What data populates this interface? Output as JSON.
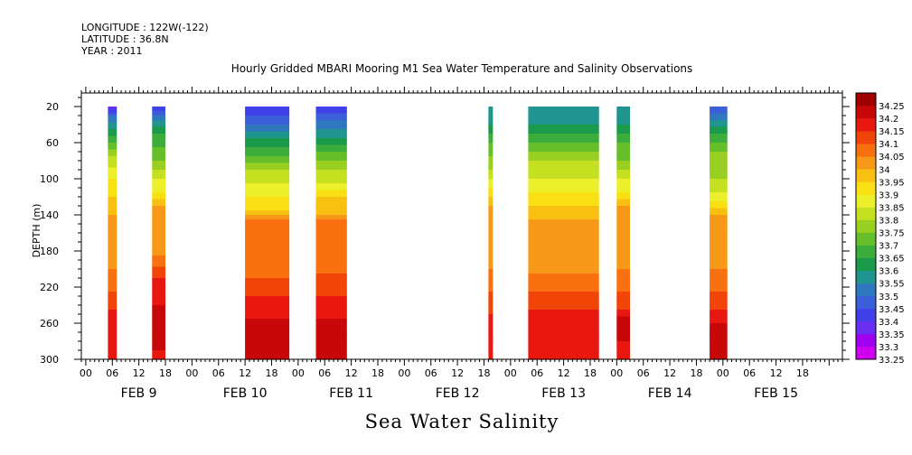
{
  "header": {
    "longitude": "LONGITUDE : 122W(-122)",
    "latitude": "LATITUDE : 36.8N",
    "year": "YEAR : 2011"
  },
  "title": "Hourly Gridded MBARI Mooring M1 Sea Water Temperature and Salinity Observations",
  "footer": "Sea Water Salinity",
  "chart_data": {
    "type": "heatmap",
    "title": "Hourly Gridded MBARI Mooring M1 Sea Water Temperature and Salinity Observations",
    "xlabel": "",
    "ylabel": "DEPTH (m)",
    "x_tick_labels": [
      "00",
      "06",
      "12",
      "18",
      "00",
      "06",
      "12",
      "18",
      "00",
      "06",
      "12",
      "18",
      "00",
      "06",
      "12",
      "18",
      "00",
      "06",
      "12",
      "18",
      "00",
      "06",
      "12",
      "18",
      "00",
      "06",
      "12",
      "18"
    ],
    "x_day_labels": [
      "FEB  9",
      "FEB 10",
      "FEB 11",
      "FEB 12",
      "FEB 13",
      "FEB 14",
      "FEB 15"
    ],
    "xlim_hours": [
      -1,
      171
    ],
    "y_ticks": [
      20,
      60,
      100,
      140,
      180,
      220,
      260,
      300
    ],
    "ylim": [
      300,
      5
    ],
    "colorbar_levels": [
      33.25,
      33.3,
      33.35,
      33.4,
      33.45,
      33.5,
      33.55,
      33.6,
      33.65,
      33.7,
      33.75,
      33.8,
      33.85,
      33.9,
      33.95,
      34,
      34.05,
      34.1,
      34.15,
      34.2,
      34.25
    ],
    "colorbar_colors": [
      "#d000f0",
      "#a000f0",
      "#6a2ef2",
      "#4040e8",
      "#3a5fd8",
      "#2f78c0",
      "#20948e",
      "#1a9a4a",
      "#3cad3c",
      "#66bf2a",
      "#98cf20",
      "#c4e020",
      "#ebf02a",
      "#f8e014",
      "#f8c010",
      "#f89818",
      "#f87010",
      "#f04408",
      "#e81810",
      "#c80808",
      "#a00000"
    ],
    "data_segments": [
      {
        "start_hour": 5,
        "end_hour": 7,
        "profile": [
          [
            20,
            33.35
          ],
          [
            30,
            33.5
          ],
          [
            45,
            33.6
          ],
          [
            60,
            33.7
          ],
          [
            75,
            33.8
          ],
          [
            100,
            33.9
          ],
          [
            120,
            33.95
          ],
          [
            140,
            34.0
          ],
          [
            200,
            34.05
          ],
          [
            225,
            34.1
          ],
          [
            245,
            34.15
          ],
          [
            300,
            34.2
          ]
        ]
      },
      {
        "start_hour": 15,
        "end_hour": 18,
        "profile": [
          [
            20,
            33.4
          ],
          [
            35,
            33.55
          ],
          [
            50,
            33.65
          ],
          [
            65,
            33.7
          ],
          [
            80,
            33.75
          ],
          [
            100,
            33.85
          ],
          [
            115,
            33.9
          ],
          [
            130,
            34.0
          ],
          [
            185,
            34.05
          ],
          [
            210,
            34.15
          ],
          [
            240,
            34.2
          ],
          [
            260,
            34.25
          ],
          [
            290,
            34.2
          ],
          [
            300,
            34.15
          ]
        ]
      },
      {
        "start_hour": 36,
        "end_hour": 46,
        "profile": [
          [
            20,
            33.4
          ],
          [
            40,
            33.5
          ],
          [
            55,
            33.6
          ],
          [
            75,
            33.7
          ],
          [
            90,
            33.8
          ],
          [
            105,
            33.85
          ],
          [
            120,
            33.9
          ],
          [
            135,
            33.95
          ],
          [
            145,
            34.05
          ],
          [
            210,
            34.1
          ],
          [
            230,
            34.15
          ],
          [
            255,
            34.2
          ],
          [
            265,
            34.25
          ],
          [
            280,
            34.2
          ],
          [
            300,
            34.2
          ]
        ]
      },
      {
        "start_hour": 52,
        "end_hour": 59,
        "profile": [
          [
            20,
            33.4
          ],
          [
            35,
            33.5
          ],
          [
            55,
            33.6
          ],
          [
            70,
            33.7
          ],
          [
            90,
            33.8
          ],
          [
            105,
            33.85
          ],
          [
            120,
            33.95
          ],
          [
            140,
            34.0
          ],
          [
            145,
            34.05
          ],
          [
            205,
            34.1
          ],
          [
            230,
            34.15
          ],
          [
            255,
            34.2
          ],
          [
            265,
            34.25
          ],
          [
            280,
            34.2
          ],
          [
            300,
            34.2
          ]
        ]
      },
      {
        "start_hour": 91,
        "end_hour": 92,
        "profile": [
          [
            20,
            33.55
          ],
          [
            40,
            33.6
          ],
          [
            60,
            33.7
          ],
          [
            90,
            33.8
          ],
          [
            110,
            33.9
          ],
          [
            130,
            34.0
          ],
          [
            200,
            34.05
          ],
          [
            225,
            34.1
          ],
          [
            250,
            34.15
          ],
          [
            300,
            34.2
          ]
        ]
      },
      {
        "start_hour": 100,
        "end_hour": 116,
        "profile": [
          [
            20,
            33.55
          ],
          [
            40,
            33.6
          ],
          [
            60,
            33.7
          ],
          [
            80,
            33.8
          ],
          [
            100,
            33.85
          ],
          [
            115,
            33.9
          ],
          [
            130,
            33.95
          ],
          [
            145,
            34.0
          ],
          [
            205,
            34.05
          ],
          [
            225,
            34.1
          ],
          [
            245,
            34.15
          ],
          [
            275,
            34.2
          ],
          [
            300,
            34.15
          ]
        ]
      },
      {
        "start_hour": 120,
        "end_hour": 123,
        "profile": [
          [
            20,
            33.55
          ],
          [
            40,
            33.6
          ],
          [
            60,
            33.7
          ],
          [
            80,
            33.75
          ],
          [
            100,
            33.85
          ],
          [
            115,
            33.9
          ],
          [
            130,
            34.0
          ],
          [
            200,
            34.05
          ],
          [
            225,
            34.1
          ],
          [
            245,
            34.15
          ],
          [
            260,
            34.25
          ],
          [
            280,
            34.2
          ],
          [
            300,
            34.15
          ]
        ]
      },
      {
        "start_hour": 141,
        "end_hour": 145,
        "profile": [
          [
            20,
            33.45
          ],
          [
            35,
            33.55
          ],
          [
            50,
            33.65
          ],
          [
            70,
            33.75
          ],
          [
            100,
            33.8
          ],
          [
            115,
            33.85
          ],
          [
            125,
            33.9
          ],
          [
            140,
            34.0
          ],
          [
            200,
            34.05
          ],
          [
            225,
            34.1
          ],
          [
            245,
            34.15
          ],
          [
            260,
            34.2
          ],
          [
            300,
            34.2
          ]
        ]
      }
    ]
  }
}
